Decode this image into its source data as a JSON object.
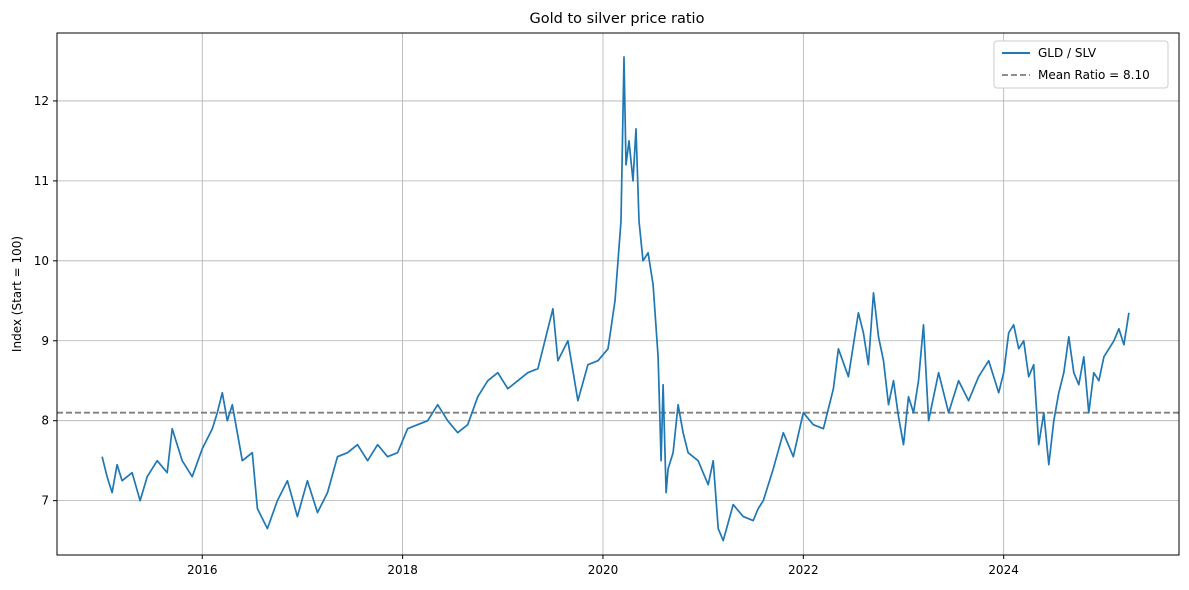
{
  "chart_data": {
    "type": "line",
    "title": "Gold to silver price ratio",
    "xlabel": "",
    "ylabel": "Index (Start = 100)",
    "xlim": [
      2014.55,
      2025.75
    ],
    "ylim": [
      6.32,
      12.85
    ],
    "x_ticks": [
      2016,
      2018,
      2020,
      2022,
      2024
    ],
    "x_tick_labels": [
      "2016",
      "2018",
      "2020",
      "2022",
      "2024"
    ],
    "y_ticks": [
      7,
      8,
      9,
      10,
      11,
      12
    ],
    "y_tick_labels": [
      "7",
      "8",
      "9",
      "10",
      "11",
      "12"
    ],
    "grid": true,
    "legend_position": "top-right",
    "colors": {
      "series": "#1f77b4",
      "mean": "#7f7f7f"
    },
    "series": [
      {
        "name": "GLD / SLV",
        "x": [
          2015.0,
          2015.05,
          2015.1,
          2015.15,
          2015.2,
          2015.3,
          2015.38,
          2015.45,
          2015.55,
          2015.65,
          2015.7,
          2015.8,
          2015.9,
          2016.0,
          2016.1,
          2016.15,
          2016.2,
          2016.25,
          2016.3,
          2016.4,
          2016.5,
          2016.55,
          2016.65,
          2016.75,
          2016.85,
          2016.95,
          2017.05,
          2017.15,
          2017.25,
          2017.35,
          2017.45,
          2017.55,
          2017.65,
          2017.75,
          2017.85,
          2017.95,
          2018.05,
          2018.15,
          2018.25,
          2018.35,
          2018.45,
          2018.55,
          2018.65,
          2018.75,
          2018.85,
          2018.95,
          2019.05,
          2019.15,
          2019.25,
          2019.35,
          2019.45,
          2019.5,
          2019.55,
          2019.65,
          2019.75,
          2019.85,
          2019.95,
          2020.05,
          2020.12,
          2020.18,
          2020.21,
          2020.23,
          2020.26,
          2020.3,
          2020.33,
          2020.36,
          2020.4,
          2020.45,
          2020.5,
          2020.55,
          2020.58,
          2020.6,
          2020.63,
          2020.65,
          2020.7,
          2020.75,
          2020.8,
          2020.85,
          2020.95,
          2021.05,
          2021.1,
          2021.15,
          2021.2,
          2021.3,
          2021.4,
          2021.5,
          2021.55,
          2021.6,
          2021.7,
          2021.8,
          2021.9,
          2022.0,
          2022.1,
          2022.2,
          2022.3,
          2022.35,
          2022.45,
          2022.5,
          2022.55,
          2022.6,
          2022.65,
          2022.7,
          2022.75,
          2022.8,
          2022.85,
          2022.9,
          2022.95,
          2023.0,
          2023.05,
          2023.1,
          2023.15,
          2023.2,
          2023.25,
          2023.35,
          2023.45,
          2023.55,
          2023.65,
          2023.75,
          2023.85,
          2023.95,
          2024.0,
          2024.05,
          2024.1,
          2024.15,
          2024.2,
          2024.25,
          2024.3,
          2024.35,
          2024.4,
          2024.45,
          2024.5,
          2024.55,
          2024.6,
          2024.65,
          2024.7,
          2024.75,
          2024.8,
          2024.85,
          2024.9,
          2024.95,
          2025.0,
          2025.05,
          2025.1,
          2025.15,
          2025.2,
          2025.25
        ],
        "y": [
          7.55,
          7.3,
          7.1,
          7.45,
          7.25,
          7.35,
          7.0,
          7.3,
          7.5,
          7.35,
          7.9,
          7.5,
          7.3,
          7.65,
          7.9,
          8.1,
          8.35,
          8.0,
          8.2,
          7.5,
          7.6,
          6.9,
          6.65,
          7.0,
          7.25,
          6.8,
          7.25,
          6.85,
          7.1,
          7.55,
          7.6,
          7.7,
          7.5,
          7.7,
          7.55,
          7.6,
          7.9,
          7.95,
          8.0,
          8.2,
          8.0,
          7.85,
          7.95,
          8.3,
          8.5,
          8.6,
          8.4,
          8.5,
          8.6,
          8.65,
          9.15,
          9.4,
          8.75,
          9.0,
          8.25,
          8.7,
          8.75,
          8.9,
          9.5,
          10.5,
          12.55,
          11.2,
          11.5,
          11.0,
          11.65,
          10.5,
          10.0,
          10.1,
          9.7,
          8.8,
          7.5,
          8.45,
          7.1,
          7.4,
          7.6,
          8.2,
          7.85,
          7.6,
          7.5,
          7.2,
          7.5,
          6.65,
          6.5,
          6.95,
          6.8,
          6.75,
          6.9,
          7.0,
          7.4,
          7.85,
          7.55,
          8.1,
          7.95,
          7.9,
          8.4,
          8.9,
          8.55,
          8.95,
          9.35,
          9.1,
          8.7,
          9.6,
          9.05,
          8.75,
          8.2,
          8.5,
          8.05,
          7.7,
          8.3,
          8.1,
          8.5,
          9.2,
          8.0,
          8.6,
          8.1,
          8.5,
          8.25,
          8.55,
          8.75,
          8.35,
          8.6,
          9.1,
          9.2,
          8.9,
          9.0,
          8.55,
          8.7,
          7.7,
          8.1,
          7.45,
          8.0,
          8.35,
          8.6,
          9.05,
          8.6,
          8.45,
          8.8,
          8.1,
          8.6,
          8.5,
          8.8,
          8.9,
          9.0,
          9.15,
          8.95,
          9.35
        ]
      }
    ],
    "mean_line": {
      "name": "Mean Ratio = 8.10",
      "value": 8.1
    }
  }
}
